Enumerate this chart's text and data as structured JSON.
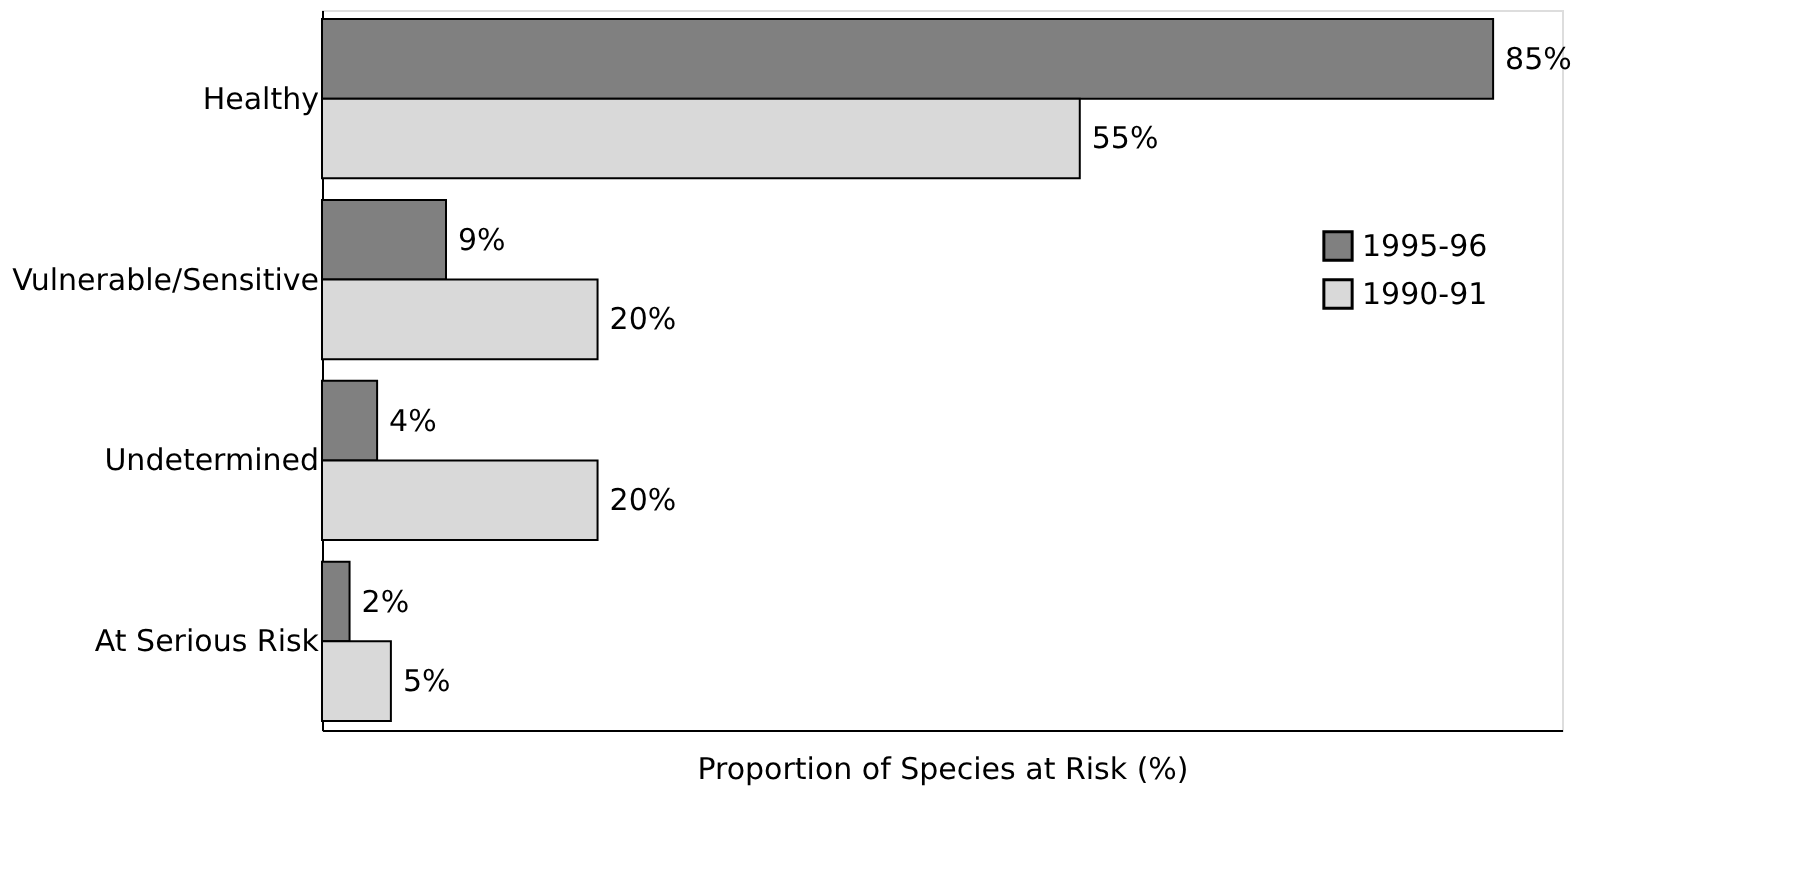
{
  "chart_data": {
    "type": "bar",
    "orientation": "horizontal",
    "xlabel": "Proportion of Species at Risk (%)",
    "categories": [
      "Healthy",
      "Vulnerable/Sensitive",
      "Undetermined",
      "At Serious Risk"
    ],
    "series": [
      {
        "name": "1995-96",
        "color": "#808080",
        "values": [
          85,
          9,
          4,
          2
        ],
        "value_labels": [
          "85%",
          "9%",
          "4%",
          "2%"
        ]
      },
      {
        "name": "1990-91",
        "color": "#d9d9d9",
        "values": [
          55,
          20,
          20,
          5
        ],
        "value_labels": [
          "55%",
          "20%",
          "20%",
          "5%"
        ]
      }
    ],
    "xlim": [
      0,
      90
    ],
    "grid": false,
    "legend": "top right"
  }
}
